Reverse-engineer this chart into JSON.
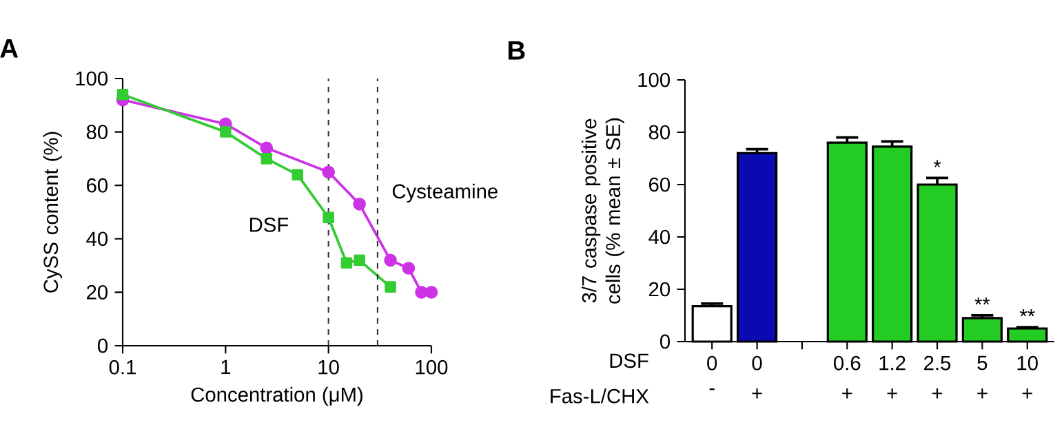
{
  "chart_data": [
    {
      "type": "line",
      "title": "A",
      "xlabel": "Concentration (μM)",
      "ylabel": "CySS content (%)",
      "log": "x",
      "xlim": [
        0.1,
        100
      ],
      "ylim": [
        0,
        100
      ],
      "xticks": [
        0.1,
        1,
        10,
        100
      ],
      "yticks": [
        0,
        20,
        40,
        60,
        80,
        100
      ],
      "series": [
        {
          "name": "Cysteamine",
          "color": "#cc33e6",
          "marker": "circle",
          "x": [
            0.1,
            1,
            2.5,
            10,
            20,
            40,
            60,
            80,
            100
          ],
          "values": [
            92,
            83,
            74,
            65,
            53,
            32,
            29,
            20,
            20
          ]
        },
        {
          "name": "DSF",
          "color": "#33cc33",
          "marker": "square",
          "x": [
            0.1,
            1,
            2.5,
            5,
            10,
            15,
            20,
            40
          ],
          "values": [
            94,
            80,
            70,
            64,
            48,
            31,
            32,
            22
          ]
        }
      ],
      "ref_lines": [
        {
          "axis": "x",
          "value": 10,
          "line_style": "dashed",
          "color": "#333333"
        },
        {
          "axis": "x",
          "value": 30,
          "line_style": "dashed",
          "color": "#333333"
        }
      ]
    },
    {
      "type": "bar",
      "title": "B",
      "ylabel": "3/7 caspase positive cells (% mean ± SE)",
      "ylim": [
        0,
        100
      ],
      "yticks": [
        0,
        20,
        40,
        60,
        80,
        100
      ],
      "categories": [
        "0",
        "0",
        null,
        "0.6",
        "1.2",
        "2.5",
        "5",
        "10"
      ],
      "values": [
        13.5,
        72,
        null,
        76,
        74.5,
        60,
        9,
        5
      ],
      "errors": [
        1,
        1.5,
        null,
        2,
        2,
        2.5,
        1,
        0.5
      ],
      "colors": [
        "#ffffff",
        "#0a0ab4",
        null,
        "#22cc22",
        "#22cc22",
        "#22cc22",
        "#22cc22",
        "#22cc22"
      ],
      "value_labels": [
        null,
        null,
        null,
        null,
        null,
        "*",
        "**",
        "**"
      ],
      "annotations": [
        "DSF",
        "Fas-L/CHX",
        "-",
        "+",
        "+",
        "+",
        "+",
        "+",
        "+"
      ]
    }
  ]
}
